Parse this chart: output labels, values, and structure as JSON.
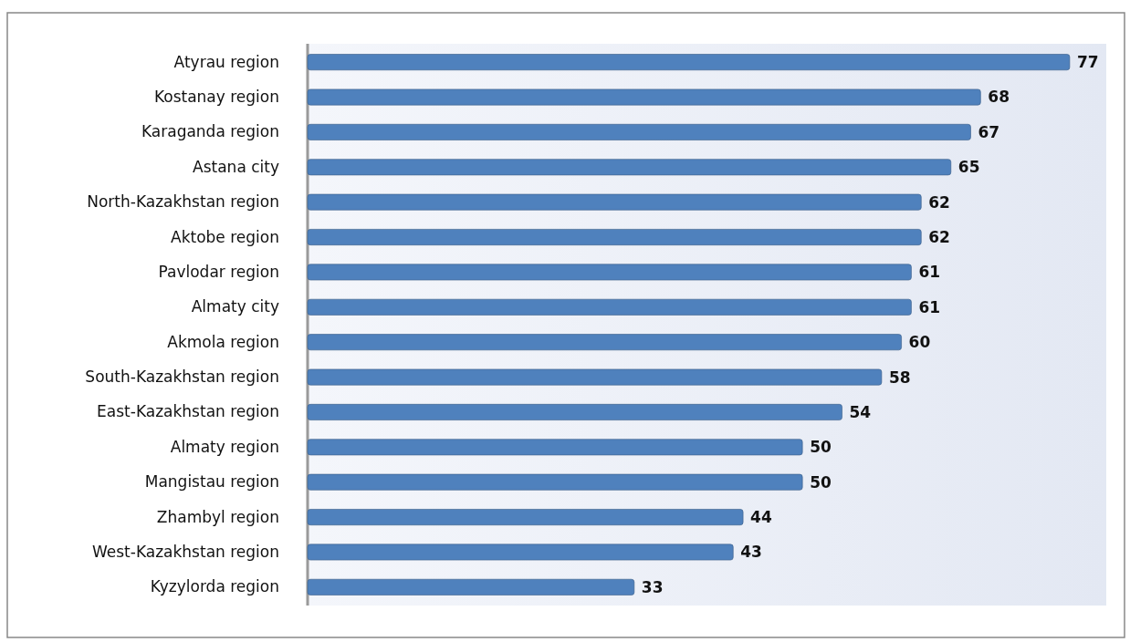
{
  "chart_data": {
    "type": "bar",
    "orientation": "horizontal",
    "categories": [
      "Atyrau region",
      "Kostanay region",
      "Karaganda region",
      "Astana city",
      "North-Kazakhstan region",
      "Aktobe region",
      "Pavlodar region",
      "Almaty city",
      "Akmola region",
      "South-Kazakhstan region",
      "East-Kazakhstan region",
      "Almaty region",
      "Mangistau region",
      "Zhambyl region",
      "West-Kazakhstan region",
      "Kyzylorda region"
    ],
    "values": [
      77,
      68,
      67,
      65,
      62,
      62,
      61,
      61,
      60,
      58,
      54,
      50,
      50,
      44,
      43,
      33
    ],
    "color": "#4f81bd",
    "data_labels": true
  }
}
